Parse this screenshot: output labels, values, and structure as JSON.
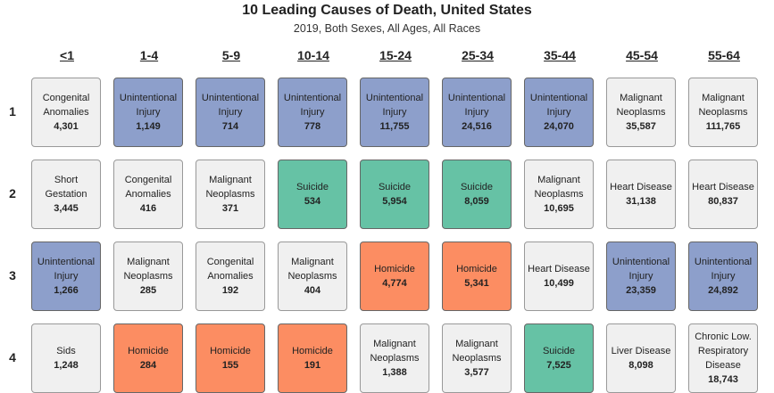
{
  "chart_data": {
    "type": "table",
    "title": "10 Leading Causes of Death, United States",
    "subtitle": "2019, Both Sexes, All Ages, All Races",
    "columns": [
      "<1",
      "1-4",
      "5-9",
      "10-14",
      "15-24",
      "25-34",
      "35-44",
      "45-54",
      "55-64"
    ],
    "ranks": [
      "1",
      "2",
      "3",
      "4"
    ],
    "colors": {
      "Unintentional Injury": "#8d9fcb",
      "Suicide": "#66c2a5",
      "Homicide": "#fc8d62",
      "other": "#f0f0f0"
    },
    "rows": [
      [
        {
          "cause": "Congenital Anomalies",
          "deaths": "4,301"
        },
        {
          "cause": "Unintentional Injury",
          "deaths": "1,149"
        },
        {
          "cause": "Unintentional Injury",
          "deaths": "714"
        },
        {
          "cause": "Unintentional Injury",
          "deaths": "778"
        },
        {
          "cause": "Unintentional Injury",
          "deaths": "11,755"
        },
        {
          "cause": "Unintentional Injury",
          "deaths": "24,516"
        },
        {
          "cause": "Unintentional Injury",
          "deaths": "24,070"
        },
        {
          "cause": "Malignant Neoplasms",
          "deaths": "35,587"
        },
        {
          "cause": "Malignant Neoplasms",
          "deaths": "111,765"
        }
      ],
      [
        {
          "cause": "Short Gestation",
          "deaths": "3,445"
        },
        {
          "cause": "Congenital Anomalies",
          "deaths": "416"
        },
        {
          "cause": "Malignant Neoplasms",
          "deaths": "371"
        },
        {
          "cause": "Suicide",
          "deaths": "534"
        },
        {
          "cause": "Suicide",
          "deaths": "5,954"
        },
        {
          "cause": "Suicide",
          "deaths": "8,059"
        },
        {
          "cause": "Malignant Neoplasms",
          "deaths": "10,695"
        },
        {
          "cause": "Heart Disease",
          "deaths": "31,138"
        },
        {
          "cause": "Heart Disease",
          "deaths": "80,837"
        }
      ],
      [
        {
          "cause": "Unintentional Injury",
          "deaths": "1,266"
        },
        {
          "cause": "Malignant Neoplasms",
          "deaths": "285"
        },
        {
          "cause": "Congenital Anomalies",
          "deaths": "192"
        },
        {
          "cause": "Malignant Neoplasms",
          "deaths": "404"
        },
        {
          "cause": "Homicide",
          "deaths": "4,774"
        },
        {
          "cause": "Homicide",
          "deaths": "5,341"
        },
        {
          "cause": "Heart Disease",
          "deaths": "10,499"
        },
        {
          "cause": "Unintentional Injury",
          "deaths": "23,359"
        },
        {
          "cause": "Unintentional Injury",
          "deaths": "24,892"
        }
      ],
      [
        {
          "cause": "Sids",
          "deaths": "1,248"
        },
        {
          "cause": "Homicide",
          "deaths": "284"
        },
        {
          "cause": "Homicide",
          "deaths": "155"
        },
        {
          "cause": "Homicide",
          "deaths": "191"
        },
        {
          "cause": "Malignant Neoplasms",
          "deaths": "1,388"
        },
        {
          "cause": "Malignant Neoplasms",
          "deaths": "3,577"
        },
        {
          "cause": "Suicide",
          "deaths": "7,525"
        },
        {
          "cause": "Liver Disease",
          "deaths": "8,098"
        },
        {
          "cause": "Chronic Low. Respiratory Disease",
          "deaths": "18,743"
        }
      ]
    ]
  }
}
